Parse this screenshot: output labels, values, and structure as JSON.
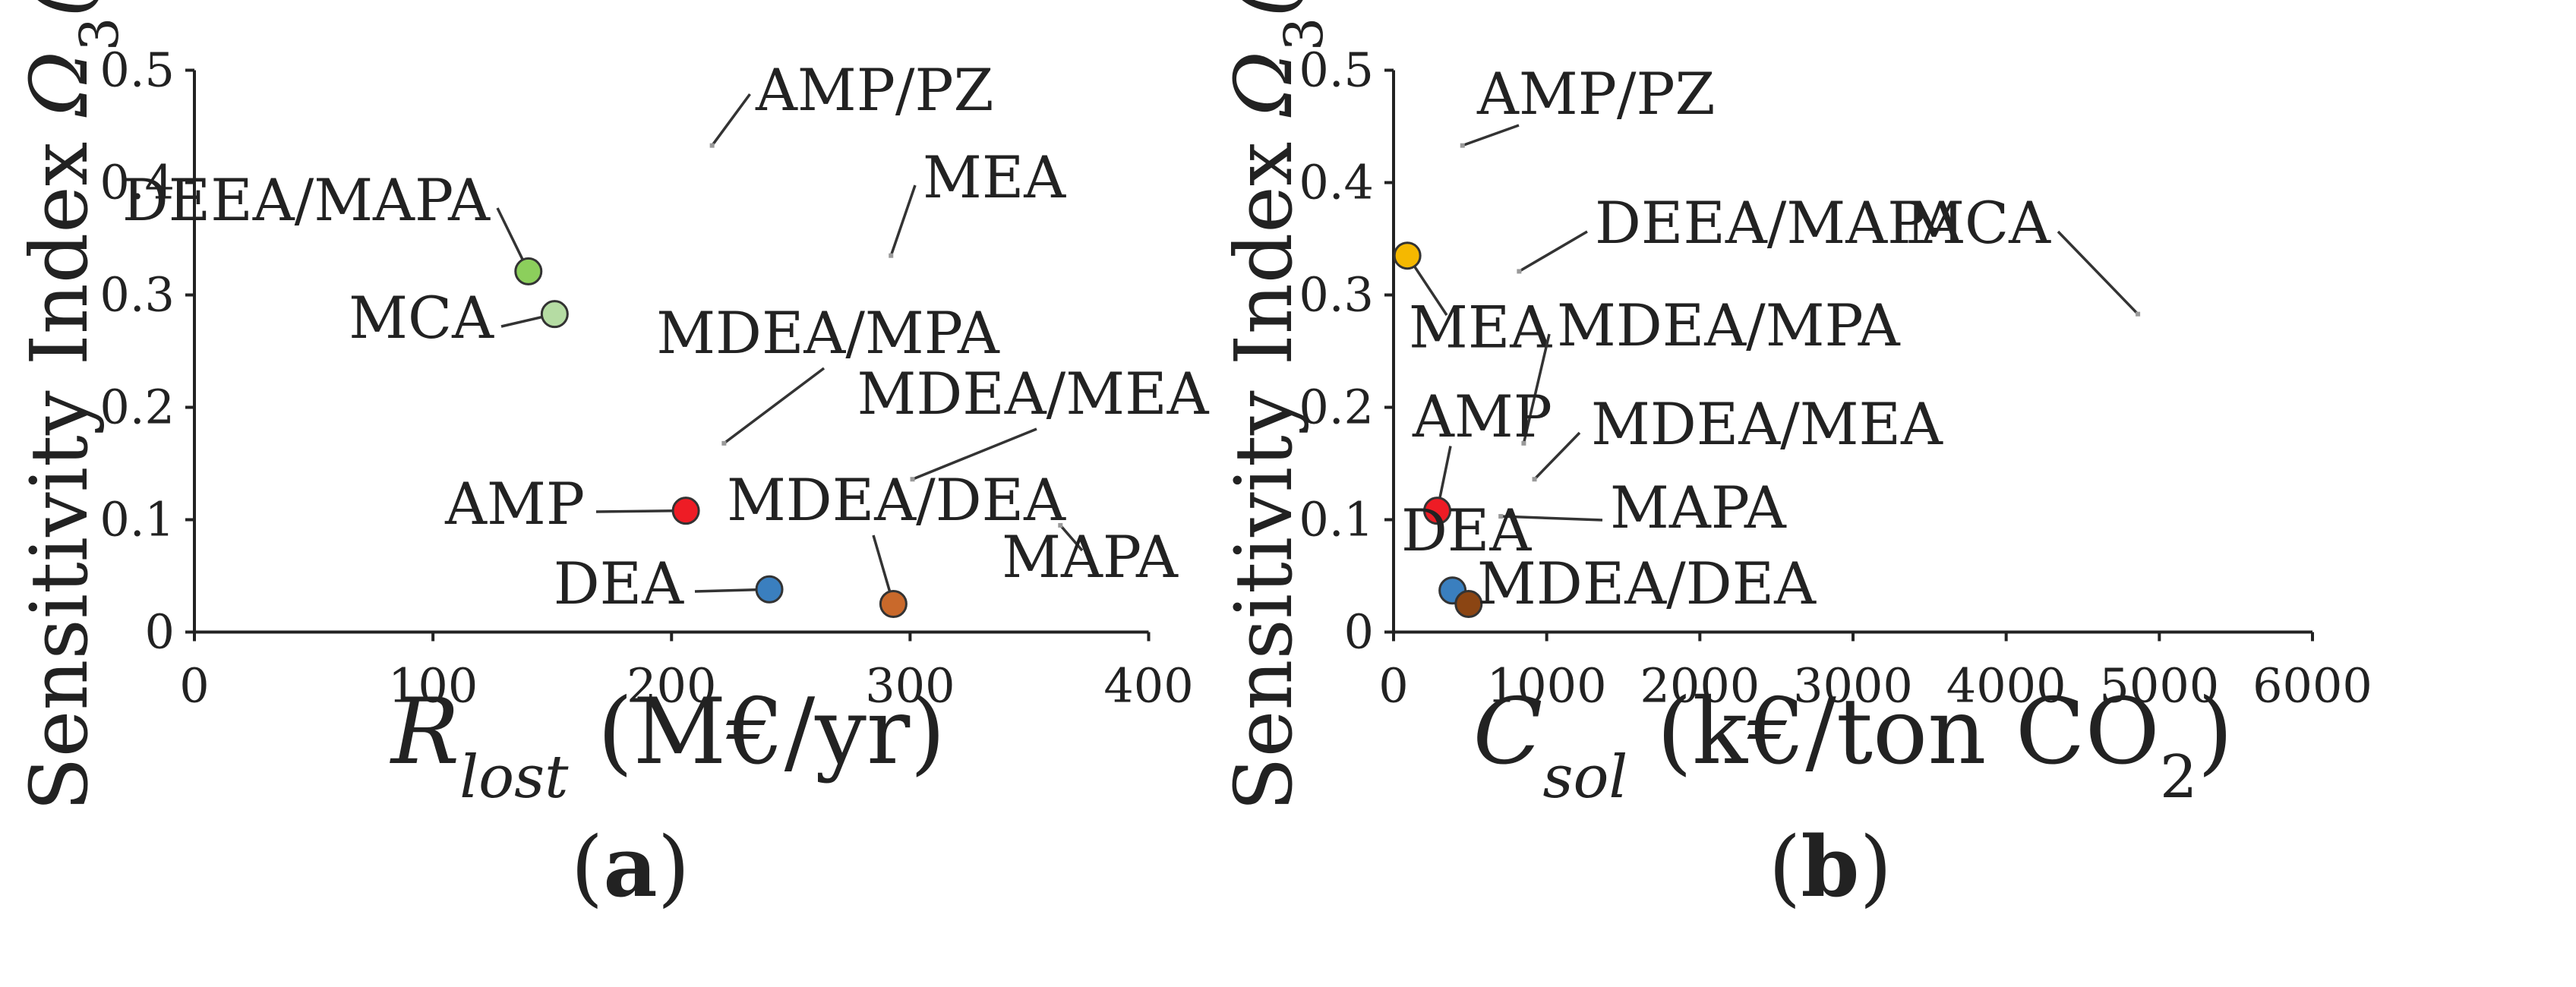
{
  "chart_data": [
    {
      "type": "scatter",
      "panel_label": "a",
      "title": "",
      "xlabel": {
        "main": "R",
        "sub": "lost",
        "unit": " (M€/yr)"
      },
      "ylabel": {
        "prefix": "Sensitivity  Index ",
        "omega": "Ω",
        "sub": "3",
        "arg": "(ζ′)"
      },
      "xlim": [
        0,
        400
      ],
      "ylim": [
        0,
        0.5
      ],
      "xticks": [
        0,
        100,
        200,
        300,
        400
      ],
      "yticks": [
        0,
        0.1,
        0.2,
        0.3,
        0.4,
        0.5
      ],
      "xtick_labels": [
        "0",
        "100",
        "200",
        "300",
        "400"
      ],
      "ytick_labels": [
        "0",
        "0.1",
        "0.2",
        "0.3",
        "0.4",
        "0.5"
      ],
      "points": [
        {
          "name": "AMP/PZ",
          "x": 217,
          "y": 0.433,
          "color": "#9a9a9a",
          "marker": "dot"
        },
        {
          "name": "MEA",
          "x": 292,
          "y": 0.335,
          "color": "#9a9a9a",
          "marker": "dot"
        },
        {
          "name": "DEEA/MAPA",
          "x": 140,
          "y": 0.321,
          "color": "#8ccf5c",
          "marker": "circle"
        },
        {
          "name": "MCA",
          "x": 151,
          "y": 0.283,
          "color": "#b5dca3",
          "marker": "circle"
        },
        {
          "name": "MDEA/MPA",
          "x": 222,
          "y": 0.168,
          "color": "#9a9a9a",
          "marker": "dot"
        },
        {
          "name": "MDEA/MEA",
          "x": 301,
          "y": 0.136,
          "color": "#9a9a9a",
          "marker": "dot"
        },
        {
          "name": "AMP",
          "x": 206,
          "y": 0.108,
          "color": "#ee1c25",
          "marker": "circle"
        },
        {
          "name": "MDEA/DEA",
          "x": 293,
          "y": 0.025,
          "color": "#c9692b",
          "marker": "circle"
        },
        {
          "name": "MAPA",
          "x": 363,
          "y": 0.095,
          "color": "#9a9a9a",
          "marker": "dot"
        },
        {
          "name": "DEA",
          "x": 241,
          "y": 0.038,
          "color": "#3a7fbf",
          "marker": "circle"
        }
      ]
    },
    {
      "type": "scatter",
      "panel_label": "b",
      "title": "",
      "xlabel": {
        "main": "C",
        "sub": "sol",
        "unit": " (k€/ton CO",
        "unit_sub": "2",
        "unit_end": ")"
      },
      "ylabel": {
        "prefix": "Sensitivity  Index ",
        "omega": "Ω",
        "sub": "3",
        "arg": "(ζ′)"
      },
      "xlim": [
        0,
        6000
      ],
      "ylim": [
        0,
        0.5
      ],
      "xticks": [
        0,
        1000,
        2000,
        3000,
        4000,
        5000,
        6000
      ],
      "yticks": [
        0,
        0.1,
        0.2,
        0.3,
        0.4,
        0.5
      ],
      "xtick_labels": [
        "0",
        "1000",
        "2000",
        "3000",
        "4000",
        "5000",
        "6000"
      ],
      "ytick_labels": [
        "0",
        "0.1",
        "0.2",
        "0.3",
        "0.4",
        "0.5"
      ],
      "points": [
        {
          "name": "AMP/PZ",
          "x": 450,
          "y": 0.433,
          "color": "#9a9a9a",
          "marker": "dot"
        },
        {
          "name": "DEEA/MAPA",
          "x": 820,
          "y": 0.321,
          "color": "#9a9a9a",
          "marker": "dot"
        },
        {
          "name": "MCA",
          "x": 4860,
          "y": 0.283,
          "color": "#9a9a9a",
          "marker": "dot"
        },
        {
          "name": "MEA",
          "x": 90,
          "y": 0.335,
          "color": "#f5b800",
          "marker": "circle"
        },
        {
          "name": "MDEA/MPA",
          "x": 850,
          "y": 0.168,
          "color": "#9a9a9a",
          "marker": "dot"
        },
        {
          "name": "MDEA/MEA",
          "x": 920,
          "y": 0.136,
          "color": "#9a9a9a",
          "marker": "dot"
        },
        {
          "name": "AMP",
          "x": 285,
          "y": 0.108,
          "color": "#ee1c25",
          "marker": "circle"
        },
        {
          "name": "MAPA",
          "x": 700,
          "y": 0.103,
          "color": "#9a9a9a",
          "marker": "dot"
        },
        {
          "name": "DEA",
          "x": 385,
          "y": 0.037,
          "color": "#3a7fbf",
          "marker": "circle"
        },
        {
          "name": "MDEA/DEA",
          "x": 490,
          "y": 0.025,
          "color": "#8b4513",
          "marker": "circle"
        }
      ]
    }
  ]
}
